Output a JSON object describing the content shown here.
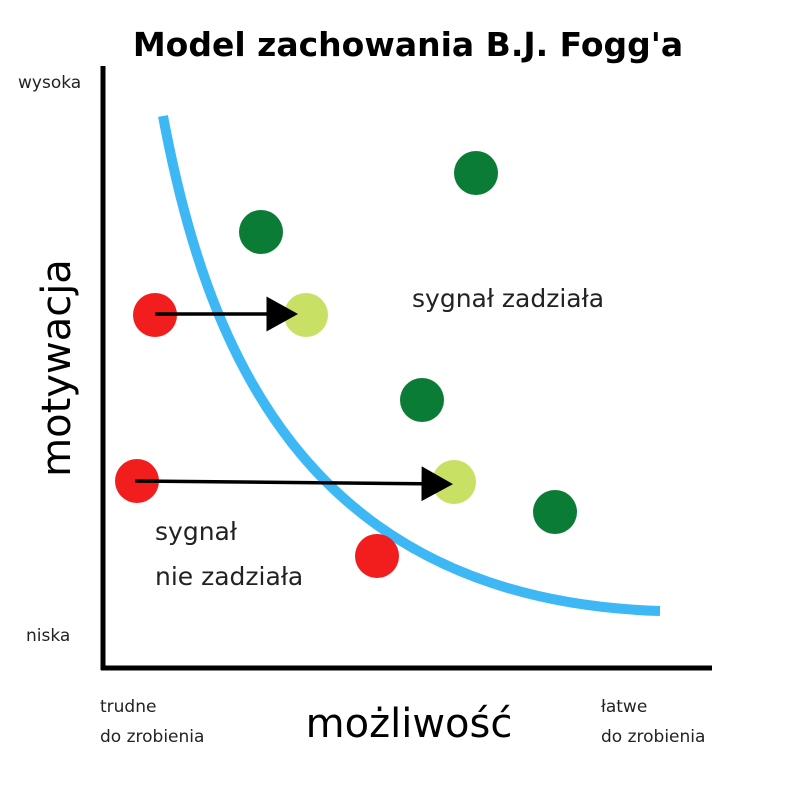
{
  "title": "Model zachowania B.J. Fogg'a",
  "y_axis": {
    "label": "motywacja",
    "high": "wysoka",
    "low": "niska"
  },
  "x_axis": {
    "label": "możliwość",
    "left_line1": "trudne",
    "left_line2": "do zrobienia",
    "right_line1": "łatwe",
    "right_line2": "do zrobienia"
  },
  "regions": {
    "above": "sygnał zadziała",
    "below_line1": "sygnał",
    "below_line2": "nie zadziała"
  },
  "colors": {
    "curve": "#3db8f5",
    "success": "#0a7c35",
    "shifted": "#c8e165",
    "fail": "#f21d1d",
    "axis": "#000000"
  }
}
